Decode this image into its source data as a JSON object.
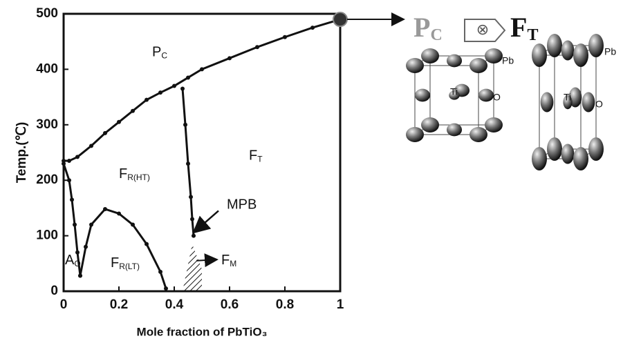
{
  "chart_data": {
    "type": "line",
    "x_label": "Mole fraction of PbTiO₃",
    "y_label": "Temp.(℃)",
    "xlim": [
      0,
      1
    ],
    "ylim": [
      0,
      500
    ],
    "xticks": [
      0,
      0.2,
      0.4,
      0.6,
      0.8,
      1
    ],
    "yticks": [
      0,
      100,
      200,
      300,
      400,
      500
    ],
    "series": [
      {
        "color": "#111111",
        "x": [
          0,
          0.02,
          0.05,
          0.1,
          0.15,
          0.2,
          0.25,
          0.3,
          0.35,
          0.4,
          0.45,
          0.5,
          0.6,
          0.7,
          0.8,
          0.9,
          1
        ],
        "values": [
          235,
          235,
          242,
          262,
          285,
          305,
          325,
          345,
          358,
          370,
          385,
          400,
          420,
          440,
          458,
          475,
          490
        ]
      },
      {
        "color": "#111111",
        "x": [
          0.43,
          0.44,
          0.45,
          0.46,
          0.465,
          0.47
        ],
        "values": [
          365,
          300,
          230,
          170,
          130,
          100
        ]
      },
      {
        "color": "#111111",
        "x": [
          0,
          0.02,
          0.03,
          0.04,
          0.05,
          0.06
        ],
        "values": [
          230,
          200,
          165,
          120,
          70,
          28
        ]
      },
      {
        "color": "#111111",
        "x": [
          0.06,
          0.08,
          0.1,
          0.15,
          0.2,
          0.25,
          0.3,
          0.35,
          0.37
        ],
        "values": [
          28,
          80,
          120,
          148,
          140,
          120,
          85,
          35,
          5
        ]
      }
    ],
    "annotations": [
      {
        "text": "P",
        "sub": "C"
      },
      {
        "text": "F",
        "sub": "R(HT)"
      },
      {
        "text": "F",
        "sub": "T"
      },
      {
        "text": "F",
        "sub": "R(LT)"
      },
      {
        "text": "A",
        "sub": "O"
      },
      {
        "text": "MPB"
      },
      {
        "text": "F",
        "sub": "M"
      }
    ]
  },
  "structures": {
    "left": {
      "text": "P",
      "sub": "C"
    },
    "right": {
      "text": "F",
      "sub": "T"
    },
    "atoms": [
      "Pb",
      "Ti",
      "O"
    ]
  }
}
